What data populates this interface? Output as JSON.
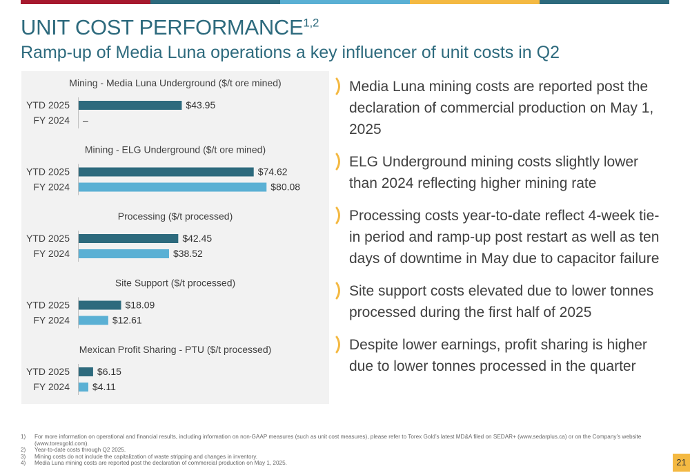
{
  "top_bar_colors": [
    "#a6192e",
    "#2d6a7d",
    "#5ab0d4",
    "#f4b942",
    "#2d6a7d"
  ],
  "title": "UNIT COST PERFORMANCE",
  "title_sup": "1,2",
  "subtitle": "Ramp-up of Media Luna operations a key influencer of unit costs in Q2",
  "colors": {
    "ytd": "#2d6a7d",
    "fy": "#5ab0d4",
    "panel": "#f2f2f2",
    "title": "#2d6a7d"
  },
  "chart_data": {
    "type": "bar",
    "orientation": "horizontal",
    "series": [
      {
        "name": "YTD 2025",
        "color": "#2d6a7d"
      },
      {
        "name": "FY 2024",
        "color": "#5ab0d4"
      }
    ],
    "groups": [
      {
        "title": "Mining - Media Luna Underground ($/t ore mined)",
        "bars": [
          {
            "label": "YTD 2025",
            "value": 43.95,
            "display": "$43.95"
          },
          {
            "label": "FY 2024",
            "value": null,
            "display": "–"
          }
        ]
      },
      {
        "title": "Mining - ELG Underground ($/t ore mined)",
        "bars": [
          {
            "label": "YTD 2025",
            "value": 74.62,
            "display": "$74.62"
          },
          {
            "label": "FY 2024",
            "value": 80.08,
            "display": "$80.08"
          }
        ]
      },
      {
        "title": "Processing ($/t processed)",
        "bars": [
          {
            "label": "YTD 2025",
            "value": 42.45,
            "display": "$42.45"
          },
          {
            "label": "FY 2024",
            "value": 38.52,
            "display": "$38.52"
          }
        ]
      },
      {
        "title": "Site Support ($/t processed)",
        "bars": [
          {
            "label": "YTD 2025",
            "value": 18.09,
            "display": "$18.09"
          },
          {
            "label": "FY 2024",
            "value": 12.61,
            "display": "$12.61"
          }
        ]
      },
      {
        "title": "Mexican Profit Sharing - PTU ($/t processed)",
        "bars": [
          {
            "label": "YTD 2025",
            "value": 6.15,
            "display": "$6.15"
          },
          {
            "label": "FY 2024",
            "value": 4.11,
            "display": "$4.11"
          }
        ]
      }
    ]
  },
  "bullets": [
    "Media Luna mining costs are reported post the declaration of commercial production on May 1, 2025",
    "ELG Underground mining costs slightly lower than 2024 reflecting higher mining rate",
    "Processing costs year-to-date reflect 4-week tie-in period and ramp-up post restart as well as ten days of downtime in May due to capacitor failure",
    "Site support costs elevated due to lower tonnes processed during the first half of 2025",
    "Despite lower earnings, profit sharing is higher due to lower tonnes processed in the quarter"
  ],
  "footnotes": [
    {
      "num": "1)",
      "text": "For more information on operational and financial results, including information on non-GAAP measures (such as unit cost measures), please refer to Torex Gold’s latest MD&A filed on SEDAR+ (www.sedarplus.ca) or on the Company’s website (www.torexgold.com)."
    },
    {
      "num": "2)",
      "text": "Year-to-date costs through Q2 2025."
    },
    {
      "num": "3)",
      "text": "Mining costs do not include the capitalization of waste stripping and changes in inventory."
    },
    {
      "num": "4)",
      "text": "Media Luna mining costs are reported post the declaration of commercial production on May 1, 2025."
    }
  ],
  "page_number": "21"
}
